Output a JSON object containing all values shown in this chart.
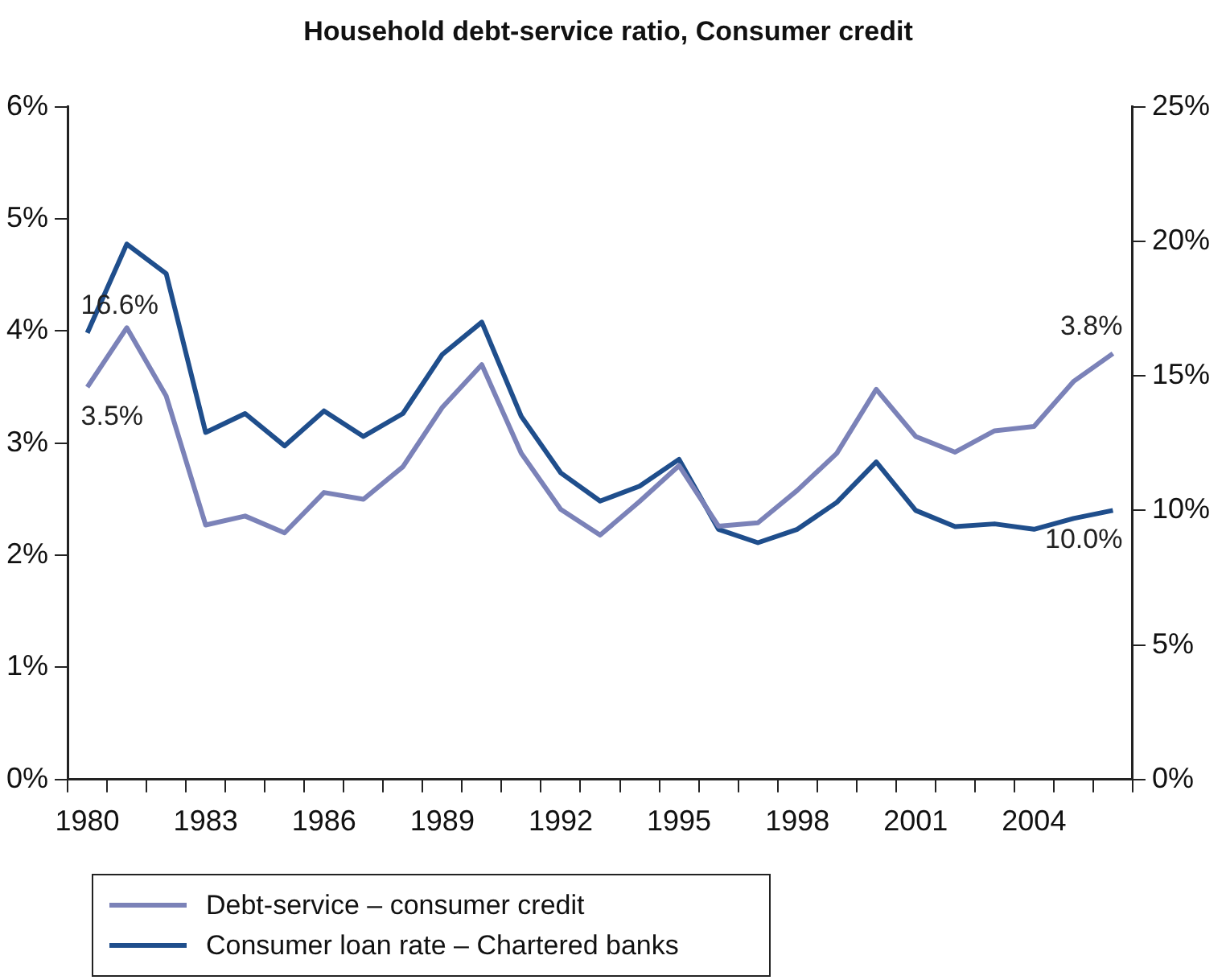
{
  "chart_data": {
    "type": "line",
    "title": "Household debt-service ratio, Consumer credit",
    "categories": [
      "1980",
      null,
      null,
      "1983",
      null,
      null,
      "1986",
      null,
      null,
      "1989",
      null,
      null,
      "1992",
      null,
      null,
      "1995",
      null,
      null,
      "1998",
      null,
      null,
      "2001",
      null,
      null,
      "2004",
      null,
      null
    ],
    "series": [
      {
        "name": "Debt-service – consumer credit",
        "color": "#7b82b8",
        "values": [
          3.5,
          4.03,
          3.42,
          2.27,
          2.35,
          2.2,
          2.56,
          2.5,
          2.79,
          3.32,
          3.7,
          2.91,
          2.41,
          2.18,
          2.48,
          2.8,
          2.26,
          2.29,
          2.58,
          2.91,
          3.48,
          3.06,
          2.92,
          3.11,
          3.15,
          3.55,
          3.8
        ],
        "value_labels": [
          "3.5%",
          null,
          null,
          null,
          null,
          null,
          null,
          null,
          null,
          null,
          null,
          null,
          null,
          null,
          null,
          null,
          null,
          null,
          null,
          null,
          null,
          null,
          null,
          null,
          null,
          null,
          "3.8%"
        ]
      },
      {
        "name": "Consumer loan rate – Chartered banks",
        "color": "#1f4e8c",
        "axis": "y2",
        "values": [
          16.6,
          19.9,
          18.8,
          12.9,
          13.6,
          12.4,
          13.7,
          12.75,
          13.6,
          15.8,
          17.0,
          13.5,
          11.4,
          10.35,
          10.9,
          11.9,
          9.3,
          8.8,
          9.3,
          10.3,
          11.8,
          10.0,
          9.4,
          9.5,
          9.3,
          9.7,
          10.0
        ],
        "value_labels": [
          "16.6%",
          null,
          null,
          null,
          null,
          null,
          null,
          null,
          null,
          null,
          null,
          null,
          null,
          null,
          null,
          null,
          null,
          null,
          null,
          null,
          null,
          null,
          null,
          null,
          null,
          null,
          "10.0%"
        ]
      }
    ],
    "ylim": [
      0,
      6
    ],
    "yticks": [
      {
        "value": 0,
        "label": "0%"
      },
      {
        "value": 1,
        "label": "1%"
      },
      {
        "value": 2,
        "label": "2%"
      },
      {
        "value": 3,
        "label": "3%"
      },
      {
        "value": 4,
        "label": "4%"
      },
      {
        "value": 5,
        "label": "5%"
      },
      {
        "value": 6,
        "label": "6%"
      }
    ],
    "y2lim": [
      0,
      25
    ],
    "y2ticks": [
      {
        "value": 0,
        "label": "0%"
      },
      {
        "value": 5,
        "label": "5%"
      },
      {
        "value": 10,
        "label": "10%"
      },
      {
        "value": 15,
        "label": "15%"
      },
      {
        "value": 20,
        "label": "20%"
      },
      {
        "value": 25,
        "label": "25%"
      }
    ],
    "grid": false,
    "legend": "bottom left",
    "marker": "none",
    "line_style": "solid"
  }
}
